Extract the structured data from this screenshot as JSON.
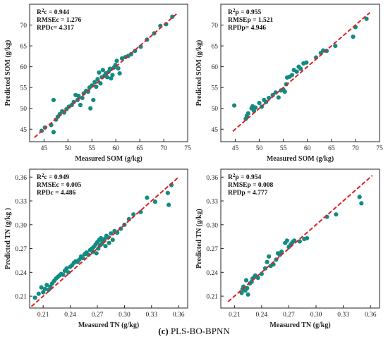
{
  "caption": {
    "label": "(c)",
    "text": "PLS-BO-BPNN"
  },
  "colors": {
    "points": "#138a82",
    "fit_line": "#e02020",
    "axes": "#222222"
  },
  "chart_data": [
    {
      "type": "scatter",
      "xlabel": "Measured SOM (g/kg)",
      "ylabel": "Predicted SOM (g/kg)",
      "xlim": [
        42,
        75
      ],
      "ylim": [
        42,
        75
      ],
      "xticks": [
        45,
        50,
        55,
        60,
        65,
        70,
        75
      ],
      "yticks": [
        45,
        50,
        55,
        60,
        65,
        70
      ],
      "tick_labels_x": [
        "45",
        "50",
        "55",
        "60",
        "65",
        "70",
        "75"
      ],
      "tick_labels_y": [
        "45",
        "50",
        "55",
        "60",
        "65",
        "70"
      ],
      "stats": [
        {
          "pre": "R",
          "sup": "2",
          "post": "c = 0.944"
        },
        {
          "pre": "RMSEc = 1.276",
          "sup": "",
          "post": ""
        },
        {
          "pre": "RPDc= 4.317",
          "sup": "",
          "post": ""
        }
      ],
      "fit_line": [
        [
          43,
          43
        ],
        [
          73,
          73
        ]
      ],
      "points": [
        [
          44.5,
          44.6
        ],
        [
          45.2,
          45.4
        ],
        [
          46.5,
          46.0
        ],
        [
          47.0,
          44.3
        ],
        [
          47.0,
          52.0
        ],
        [
          47.5,
          47.3
        ],
        [
          47.9,
          48.0
        ],
        [
          48.3,
          48.6
        ],
        [
          48.8,
          49.3
        ],
        [
          49.2,
          49.0
        ],
        [
          49.7,
          49.8
        ],
        [
          50.2,
          50.4
        ],
        [
          50.8,
          50.8
        ],
        [
          51.2,
          51.5
        ],
        [
          51.6,
          53.2
        ],
        [
          52.0,
          52.0
        ],
        [
          52.2,
          53.0
        ],
        [
          52.6,
          50.8
        ],
        [
          53.0,
          52.5
        ],
        [
          53.3,
          53.6
        ],
        [
          53.8,
          54.2
        ],
        [
          54.2,
          54.0
        ],
        [
          54.5,
          55.0
        ],
        [
          54.7,
          50.0
        ],
        [
          55.0,
          55.5
        ],
        [
          55.3,
          52.0
        ],
        [
          55.6,
          56.3
        ],
        [
          55.9,
          55.2
        ],
        [
          56.2,
          57.0
        ],
        [
          56.5,
          58.6
        ],
        [
          56.8,
          56.0
        ],
        [
          57.1,
          57.5
        ],
        [
          57.3,
          59.2
        ],
        [
          57.6,
          57.8
        ],
        [
          57.9,
          58.4
        ],
        [
          58.2,
          57.5
        ],
        [
          58.5,
          58.8
        ],
        [
          58.8,
          59.5
        ],
        [
          59.0,
          57.2
        ],
        [
          59.3,
          58.0
        ],
        [
          59.6,
          59.8
        ],
        [
          59.9,
          60.4
        ],
        [
          60.2,
          61.4
        ],
        [
          60.5,
          59.6
        ],
        [
          60.8,
          58.4
        ],
        [
          61.3,
          62.0
        ],
        [
          62.0,
          62.3
        ],
        [
          62.6,
          62.6
        ],
        [
          63.2,
          63.0
        ],
        [
          64.0,
          63.8
        ],
        [
          65.2,
          64.8
        ],
        [
          66.5,
          66.5
        ],
        [
          68.0,
          68.0
        ],
        [
          69.3,
          69.8
        ],
        [
          70.5,
          70.2
        ],
        [
          71.8,
          72.0
        ]
      ]
    },
    {
      "type": "scatter",
      "xlabel": "Measured SOM (g/kg)",
      "ylabel": "Predicted SOM (g/kg)",
      "xlim": [
        42,
        75
      ],
      "ylim": [
        42,
        75
      ],
      "xticks": [
        45,
        50,
        55,
        60,
        65,
        70,
        75
      ],
      "yticks": [
        45,
        50,
        55,
        60,
        65,
        70
      ],
      "tick_labels_x": [
        "45",
        "50",
        "55",
        "60",
        "65",
        "70",
        "75"
      ],
      "tick_labels_y": [
        "45",
        "50",
        "55",
        "60",
        "65",
        "70"
      ],
      "stats": [
        {
          "pre": "R",
          "sup": "2",
          "post": "p = 0.955"
        },
        {
          "pre": "RMSEp = 1.521",
          "sup": "",
          "post": ""
        },
        {
          "pre": "RPDp= 4.946",
          "sup": "",
          "post": ""
        }
      ],
      "fit_line": [
        [
          44.5,
          44.5
        ],
        [
          73,
          73
        ]
      ],
      "points": [
        [
          44.8,
          50.7
        ],
        [
          47.2,
          47.5
        ],
        [
          47.4,
          48.2
        ],
        [
          47.7,
          48.8
        ],
        [
          48.4,
          50.0
        ],
        [
          48.6,
          50.5
        ],
        [
          48.9,
          49.4
        ],
        [
          49.2,
          50.2
        ],
        [
          50.0,
          51.3
        ],
        [
          50.5,
          50.4
        ],
        [
          51.0,
          52.0
        ],
        [
          51.4,
          51.5
        ],
        [
          52.0,
          52.5
        ],
        [
          52.8,
          53.2
        ],
        [
          53.4,
          53.8
        ],
        [
          54.0,
          52.6
        ],
        [
          54.5,
          54.3
        ],
        [
          55.0,
          54.5
        ],
        [
          55.3,
          54.0
        ],
        [
          55.6,
          55.8
        ],
        [
          55.8,
          57.4
        ],
        [
          56.3,
          57.6
        ],
        [
          56.8,
          58.0
        ],
        [
          57.2,
          59.2
        ],
        [
          57.8,
          58.8
        ],
        [
          58.2,
          60.0
        ],
        [
          58.6,
          59.5
        ],
        [
          59.2,
          60.8
        ],
        [
          59.8,
          61.0
        ],
        [
          61.8,
          62.2
        ],
        [
          62.8,
          63.3
        ],
        [
          63.3,
          63.9
        ],
        [
          64.0,
          63.8
        ],
        [
          65.8,
          65.0
        ],
        [
          69.5,
          67.2
        ],
        [
          70.0,
          69.5
        ],
        [
          72.3,
          71.5
        ]
      ]
    },
    {
      "type": "scatter",
      "xlabel": "Measured TN (g/kg)",
      "ylabel": "Predicted TN (g/kg )",
      "xlim": [
        0.195,
        0.37
      ],
      "ylim": [
        0.195,
        0.37
      ],
      "xticks": [
        0.21,
        0.24,
        0.27,
        0.3,
        0.33,
        0.36
      ],
      "yticks": [
        0.21,
        0.24,
        0.27,
        0.3,
        0.33,
        0.36
      ],
      "tick_labels_x": [
        "0.21",
        "0.24",
        "0.27",
        "0.30",
        "0.33",
        "0.36"
      ],
      "tick_labels_y": [
        "0.21",
        "0.24",
        "0.27",
        "0.30",
        "0.33",
        "0.36"
      ],
      "stats": [
        {
          "pre": "R",
          "sup": "2",
          "post": "c = 0.949"
        },
        {
          "pre": "RMSEc = 0.005",
          "sup": "",
          "post": ""
        },
        {
          "pre": "RPDc = 4.486",
          "sup": "",
          "post": ""
        }
      ],
      "fit_line": [
        [
          0.197,
          0.197
        ],
        [
          0.36,
          0.36
        ]
      ],
      "points": [
        [
          0.201,
          0.208
        ],
        [
          0.205,
          0.213
        ],
        [
          0.208,
          0.221
        ],
        [
          0.21,
          0.215
        ],
        [
          0.212,
          0.219
        ],
        [
          0.214,
          0.224
        ],
        [
          0.216,
          0.218
        ],
        [
          0.218,
          0.222
        ],
        [
          0.22,
          0.226
        ],
        [
          0.222,
          0.229
        ],
        [
          0.224,
          0.232
        ],
        [
          0.226,
          0.234
        ],
        [
          0.228,
          0.236
        ],
        [
          0.23,
          0.238
        ],
        [
          0.232,
          0.237
        ],
        [
          0.234,
          0.242
        ],
        [
          0.236,
          0.245
        ],
        [
          0.238,
          0.24
        ],
        [
          0.24,
          0.247
        ],
        [
          0.242,
          0.249
        ],
        [
          0.244,
          0.252
        ],
        [
          0.246,
          0.254
        ],
        [
          0.248,
          0.253
        ],
        [
          0.25,
          0.256
        ],
        [
          0.252,
          0.26
        ],
        [
          0.254,
          0.258
        ],
        [
          0.256,
          0.263
        ],
        [
          0.258,
          0.265
        ],
        [
          0.26,
          0.262
        ],
        [
          0.262,
          0.268
        ],
        [
          0.264,
          0.27
        ],
        [
          0.265,
          0.266
        ],
        [
          0.266,
          0.272
        ],
        [
          0.268,
          0.275
        ],
        [
          0.269,
          0.264
        ],
        [
          0.27,
          0.278
        ],
        [
          0.271,
          0.27
        ],
        [
          0.272,
          0.281
        ],
        [
          0.273,
          0.274
        ],
        [
          0.274,
          0.283
        ],
        [
          0.275,
          0.276
        ],
        [
          0.276,
          0.279
        ],
        [
          0.278,
          0.282
        ],
        [
          0.279,
          0.273
        ],
        [
          0.28,
          0.286
        ],
        [
          0.282,
          0.284
        ],
        [
          0.283,
          0.277
        ],
        [
          0.285,
          0.289
        ],
        [
          0.287,
          0.281
        ],
        [
          0.289,
          0.292
        ],
        [
          0.292,
          0.29
        ],
        [
          0.296,
          0.295
        ],
        [
          0.3,
          0.3
        ],
        [
          0.305,
          0.307
        ],
        [
          0.31,
          0.313
        ],
        [
          0.318,
          0.316
        ],
        [
          0.325,
          0.334
        ],
        [
          0.334,
          0.329
        ],
        [
          0.348,
          0.34
        ],
        [
          0.349,
          0.325
        ],
        [
          0.352,
          0.35
        ]
      ]
    },
    {
      "type": "scatter",
      "xlabel": "Measured TN (g/kg)",
      "ylabel": "Predicted TN (g/kg)",
      "xlim": [
        0.195,
        0.37
      ],
      "ylim": [
        0.195,
        0.37
      ],
      "xticks": [
        0.21,
        0.24,
        0.27,
        0.3,
        0.33,
        0.36
      ],
      "yticks": [
        0.21,
        0.24,
        0.27,
        0.3,
        0.33,
        0.36
      ],
      "tick_labels_x": [
        "0.21",
        "0.24",
        "0.27",
        "0.30",
        "0.33",
        "0.36"
      ],
      "tick_labels_y": [
        "0.21",
        "0.24",
        "0.27",
        "0.30",
        "0.33",
        "0.36"
      ],
      "stats": [
        {
          "pre": "R",
          "sup": "2",
          "post": "p = 0.954"
        },
        {
          "pre": "RMSEp = 0.008",
          "sup": "",
          "post": ""
        },
        {
          "pre": "RPDp = 4.777",
          "sup": "",
          "post": ""
        }
      ],
      "fit_line": [
        [
          0.203,
          0.203
        ],
        [
          0.362,
          0.362
        ]
      ],
      "points": [
        [
          0.218,
          0.214
        ],
        [
          0.219,
          0.219
        ],
        [
          0.22,
          0.222
        ],
        [
          0.222,
          0.217
        ],
        [
          0.223,
          0.23
        ],
        [
          0.224,
          0.22
        ],
        [
          0.225,
          0.212
        ],
        [
          0.227,
          0.226
        ],
        [
          0.229,
          0.228
        ],
        [
          0.23,
          0.232
        ],
        [
          0.232,
          0.234
        ],
        [
          0.233,
          0.236
        ],
        [
          0.236,
          0.233
        ],
        [
          0.24,
          0.238
        ],
        [
          0.244,
          0.245
        ],
        [
          0.246,
          0.253
        ],
        [
          0.248,
          0.26
        ],
        [
          0.25,
          0.248
        ],
        [
          0.253,
          0.25
        ],
        [
          0.256,
          0.256
        ],
        [
          0.258,
          0.264
        ],
        [
          0.26,
          0.262
        ],
        [
          0.262,
          0.266
        ],
        [
          0.266,
          0.277
        ],
        [
          0.268,
          0.28
        ],
        [
          0.27,
          0.272
        ],
        [
          0.272,
          0.275
        ],
        [
          0.274,
          0.278
        ],
        [
          0.276,
          0.28
        ],
        [
          0.282,
          0.279
        ],
        [
          0.287,
          0.282
        ],
        [
          0.29,
          0.283
        ],
        [
          0.312,
          0.31
        ],
        [
          0.322,
          0.313
        ],
        [
          0.348,
          0.335
        ],
        [
          0.35,
          0.327
        ]
      ]
    }
  ]
}
